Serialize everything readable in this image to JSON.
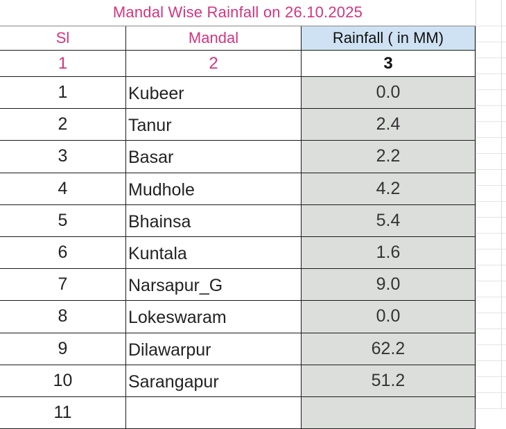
{
  "title": "Mandal Wise  Rainfall on 26.10.2025",
  "headers": {
    "sl": "Sl",
    "mandal": "Mandal",
    "rainfall": "Rainfall ( in MM)"
  },
  "column_numbers": {
    "sl": "1",
    "mandal": "2",
    "rainfall": "3"
  },
  "rows": [
    {
      "sl": "1",
      "mandal": "Kubeer",
      "rainfall": "0.0"
    },
    {
      "sl": "2",
      "mandal": "Tanur",
      "rainfall": "2.4"
    },
    {
      "sl": "3",
      "mandal": "Basar",
      "rainfall": "2.2"
    },
    {
      "sl": "4",
      "mandal": "Mudhole",
      "rainfall": "4.2"
    },
    {
      "sl": "5",
      "mandal": "Bhainsa",
      "rainfall": "5.4"
    },
    {
      "sl": "6",
      "mandal": "Kuntala",
      "rainfall": "1.6"
    },
    {
      "sl": "7",
      "mandal": "Narsapur_G",
      "rainfall": "9.0"
    },
    {
      "sl": "8",
      "mandal": "Lokeswaram",
      "rainfall": "0.0"
    },
    {
      "sl": "9",
      "mandal": "Dilawarpur",
      "rainfall": "62.2"
    },
    {
      "sl": "10",
      "mandal": "Sarangapur",
      "rainfall": "51.2"
    },
    {
      "sl": "11",
      "mandal": "",
      "rainfall": ""
    }
  ],
  "colors": {
    "title_text": "#d6337f",
    "header_rainfall_fill": "#cfe2f3",
    "rainfall_cell_fill": "#dcdedc"
  }
}
